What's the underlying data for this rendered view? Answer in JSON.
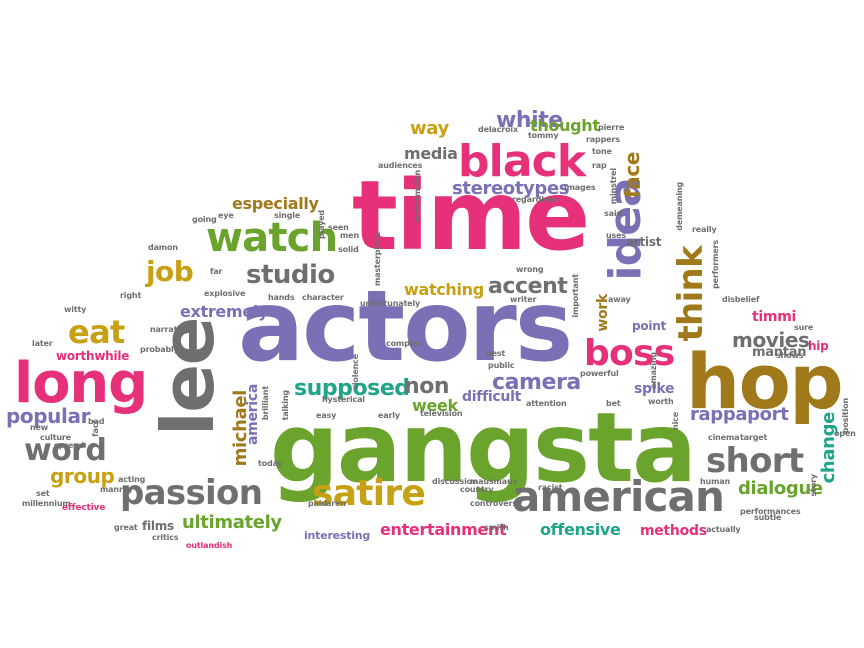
{
  "colors": {
    "purple": "#7b6fb5",
    "pink": "#e6307a",
    "green": "#6aa42c",
    "gray": "#6f6f6f",
    "teal": "#20a58a",
    "gold": "#c8a013",
    "brown": "#a0791a",
    "red": "#c0283c"
  },
  "words": [
    {
      "text": "gangsta",
      "color": "green"
    },
    {
      "text": "actors",
      "color": "purple"
    },
    {
      "text": "time",
      "color": "pink"
    },
    {
      "text": "hop",
      "color": "brown"
    },
    {
      "text": "lee",
      "color": "gray"
    },
    {
      "text": "long",
      "color": "pink"
    },
    {
      "text": "black",
      "color": "pink"
    },
    {
      "text": "idea",
      "color": "purple"
    },
    {
      "text": "american",
      "color": "gray"
    },
    {
      "text": "passion",
      "color": "gray"
    },
    {
      "text": "watch",
      "color": "green"
    },
    {
      "text": "satire",
      "color": "gold"
    },
    {
      "text": "short",
      "color": "gray"
    },
    {
      "text": "boss",
      "color": "pink"
    },
    {
      "text": "think",
      "color": "brown"
    },
    {
      "text": "word",
      "color": "gray"
    },
    {
      "text": "eat",
      "color": "gold"
    },
    {
      "text": "studio",
      "color": "gray"
    },
    {
      "text": "job",
      "color": "gold"
    },
    {
      "text": "supposed",
      "color": "teal"
    },
    {
      "text": "non",
      "color": "gray"
    },
    {
      "text": "camera",
      "color": "purple"
    },
    {
      "text": "accent",
      "color": "gray"
    },
    {
      "text": "white",
      "color": "purple"
    },
    {
      "text": "movies",
      "color": "gray"
    },
    {
      "text": "popular",
      "color": "purple"
    },
    {
      "text": "group",
      "color": "gold"
    },
    {
      "text": "ultimately",
      "color": "green"
    },
    {
      "text": "entertainment",
      "color": "pink"
    },
    {
      "text": "offensive",
      "color": "teal"
    },
    {
      "text": "dialogue",
      "color": "green"
    },
    {
      "text": "rappaport",
      "color": "purple"
    },
    {
      "text": "michael",
      "color": "brown"
    },
    {
      "text": "change",
      "color": "teal"
    },
    {
      "text": "face",
      "color": "brown"
    },
    {
      "text": "stereotypes",
      "color": "purple"
    },
    {
      "text": "media",
      "color": "gray"
    },
    {
      "text": "way",
      "color": "gold"
    },
    {
      "text": "thought",
      "color": "green"
    },
    {
      "text": "extremely",
      "color": "purple"
    },
    {
      "text": "especially",
      "color": "brown"
    },
    {
      "text": "watching",
      "color": "gold"
    },
    {
      "text": "week",
      "color": "green"
    },
    {
      "text": "difficult",
      "color": "purple"
    },
    {
      "text": "spike",
      "color": "purple"
    },
    {
      "text": "mantan",
      "color": "gray"
    },
    {
      "text": "timmi",
      "color": "pink"
    },
    {
      "text": "methods",
      "color": "pink"
    },
    {
      "text": "worthwhile",
      "color": "pink"
    },
    {
      "text": "america",
      "color": "purple"
    },
    {
      "text": "work",
      "color": "brown"
    },
    {
      "text": "artist",
      "color": "gray"
    },
    {
      "text": "point",
      "color": "purple"
    },
    {
      "text": "hip",
      "color": "pink"
    },
    {
      "text": "films",
      "color": "gray"
    },
    {
      "text": "interesting",
      "color": "purple"
    },
    {
      "text": "effective",
      "color": "pink"
    },
    {
      "text": "culture",
      "color": "gray"
    },
    {
      "text": "bad",
      "color": "gray"
    },
    {
      "text": "fact",
      "color": "gray"
    },
    {
      "text": "witty",
      "color": "gray"
    },
    {
      "text": "right",
      "color": "gray"
    },
    {
      "text": "later",
      "color": "gray"
    },
    {
      "text": "new",
      "color": "gray"
    },
    {
      "text": "set",
      "color": "gray"
    },
    {
      "text": "millennium",
      "color": "gray"
    },
    {
      "text": "great",
      "color": "gray"
    },
    {
      "text": "critics",
      "color": "gray"
    },
    {
      "text": "outlandish",
      "color": "pink"
    },
    {
      "text": "acting",
      "color": "gray"
    },
    {
      "text": "manray",
      "color": "gray"
    },
    {
      "text": "narrative",
      "color": "gray"
    },
    {
      "text": "probably",
      "color": "gray"
    },
    {
      "text": "explosive",
      "color": "gray"
    },
    {
      "text": "far",
      "color": "gray"
    },
    {
      "text": "hands",
      "color": "gray"
    },
    {
      "text": "character",
      "color": "gray"
    },
    {
      "text": "damon",
      "color": "gray"
    },
    {
      "text": "going",
      "color": "gray"
    },
    {
      "text": "eye",
      "color": "gray"
    },
    {
      "text": "single",
      "color": "gray"
    },
    {
      "text": "played",
      "color": "gray"
    },
    {
      "text": "solid",
      "color": "gray"
    },
    {
      "text": "masterpiece",
      "color": "gray"
    },
    {
      "text": "unfortunately",
      "color": "gray"
    },
    {
      "text": "violence",
      "color": "gray"
    },
    {
      "text": "complex",
      "color": "gray"
    },
    {
      "text": "public",
      "color": "gray"
    },
    {
      "text": "best",
      "color": "gray"
    },
    {
      "text": "hysterical",
      "color": "gray"
    },
    {
      "text": "early",
      "color": "gray"
    },
    {
      "text": "easy",
      "color": "gray"
    },
    {
      "text": "today",
      "color": "gray"
    },
    {
      "text": "paid",
      "color": "gray"
    },
    {
      "text": "aren",
      "color": "gray"
    },
    {
      "text": "discussion",
      "color": "gray"
    },
    {
      "text": "country",
      "color": "gray"
    },
    {
      "text": "racist",
      "color": "gray"
    },
    {
      "text": "mausmaus",
      "color": "gray"
    },
    {
      "text": "controversy",
      "color": "gray"
    },
    {
      "text": "smith",
      "color": "gray"
    },
    {
      "text": "attention",
      "color": "gray"
    },
    {
      "text": "television",
      "color": "gray"
    },
    {
      "text": "powerful",
      "color": "gray"
    },
    {
      "text": "bet",
      "color": "gray"
    },
    {
      "text": "worth",
      "color": "gray"
    },
    {
      "text": "nice",
      "color": "gray"
    },
    {
      "text": "human",
      "color": "gray"
    },
    {
      "text": "cinema",
      "color": "gray"
    },
    {
      "text": "target",
      "color": "gray"
    },
    {
      "text": "performances",
      "color": "gray"
    },
    {
      "text": "subtle",
      "color": "gray"
    },
    {
      "text": "actually",
      "color": "gray"
    },
    {
      "text": "story",
      "color": "gray"
    },
    {
      "text": "position",
      "color": "gray"
    },
    {
      "text": "open",
      "color": "gray"
    },
    {
      "text": "shows",
      "color": "gray"
    },
    {
      "text": "sure",
      "color": "gray"
    },
    {
      "text": "disbelief",
      "color": "gray"
    },
    {
      "text": "really",
      "color": "gray"
    },
    {
      "text": "performers",
      "color": "gray"
    },
    {
      "text": "demeaning",
      "color": "gray"
    },
    {
      "text": "said",
      "color": "gray"
    },
    {
      "text": "uses",
      "color": "gray"
    },
    {
      "text": "wrong",
      "color": "gray"
    },
    {
      "text": "writer",
      "color": "gray"
    },
    {
      "text": "important",
      "color": "gray"
    },
    {
      "text": "away",
      "color": "gray"
    },
    {
      "text": "amazing",
      "color": "gray"
    },
    {
      "text": "regardless",
      "color": "gray"
    },
    {
      "text": "images",
      "color": "gray"
    },
    {
      "text": "audiences",
      "color": "gray"
    },
    {
      "text": "watermelon",
      "color": "gray"
    },
    {
      "text": "rap",
      "color": "gray"
    },
    {
      "text": "tone",
      "color": "gray"
    },
    {
      "text": "minstrel",
      "color": "gray"
    },
    {
      "text": "rappers",
      "color": "gray"
    },
    {
      "text": "pierre",
      "color": "gray"
    },
    {
      "text": "delacroix",
      "color": "gray"
    },
    {
      "text": "tommy",
      "color": "gray"
    },
    {
      "text": "men",
      "color": "gray"
    },
    {
      "text": "brilliant",
      "color": "gray"
    },
    {
      "text": "talking",
      "color": "gray"
    },
    {
      "text": "spread",
      "color": "gray"
    },
    {
      "text": "seen",
      "color": "gray"
    }
  ]
}
